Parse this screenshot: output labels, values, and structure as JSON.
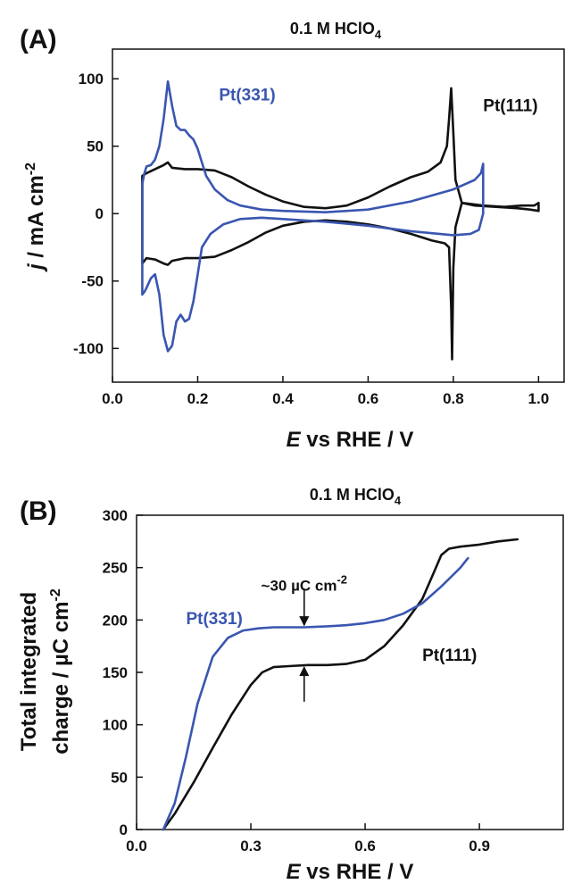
{
  "panels": {
    "a": {
      "label": "(A)"
    },
    "b": {
      "label": "(B)"
    }
  },
  "chart_data": [
    {
      "type": "line",
      "title": "0.1 M HClO4",
      "title_main": "0.1 M HClO",
      "title_sub": "4",
      "xlabel": "E vs RHE / V",
      "xlabel_italic": "E",
      "xlabel_rest": " vs RHE / V",
      "ylabel": "j / mA cm-2",
      "ylabel_italic": "j",
      "ylabel_rest": " / mA cm",
      "ylabel_sup": "-2",
      "xlim": [
        0.0,
        1.06
      ],
      "ylim": [
        -125,
        122
      ],
      "xticks": [
        "0.0",
        "0.2",
        "0.4",
        "0.6",
        "0.8",
        "1.0"
      ],
      "yticks": [
        "100",
        "50",
        "0",
        "-50",
        "-100"
      ],
      "grid": false,
      "series": [
        {
          "name": "Pt(111)",
          "color": "#111111",
          "x": [
            0.07,
            0.07,
            0.08,
            0.1,
            0.12,
            0.13,
            0.14,
            0.17,
            0.2,
            0.24,
            0.28,
            0.32,
            0.36,
            0.4,
            0.45,
            0.5,
            0.55,
            0.6,
            0.65,
            0.7,
            0.74,
            0.77,
            0.785,
            0.79,
            0.795,
            0.8,
            0.805,
            0.82,
            0.87,
            0.92,
            0.96,
            0.99,
            1.0,
            1.0,
            0.98,
            0.95,
            0.9,
            0.85,
            0.82,
            0.805,
            0.8,
            0.797,
            0.795,
            0.79,
            0.78,
            0.75,
            0.7,
            0.65,
            0.6,
            0.55,
            0.5,
            0.45,
            0.4,
            0.36,
            0.32,
            0.28,
            0.24,
            0.2,
            0.17,
            0.14,
            0.13,
            0.12,
            0.1,
            0.08,
            0.07
          ],
          "y": [
            -37,
            28,
            30,
            33,
            36,
            38,
            34,
            33,
            33,
            32,
            27,
            20,
            14,
            9,
            5,
            4,
            6,
            12,
            20,
            27,
            31,
            38,
            50,
            70,
            93,
            60,
            25,
            8,
            6,
            5,
            6,
            6,
            8,
            2,
            3,
            4,
            5,
            6,
            8,
            -10,
            -40,
            -108,
            -70,
            -25,
            -22,
            -20,
            -15,
            -11,
            -8,
            -6,
            -5,
            -6,
            -9,
            -14,
            -21,
            -27,
            -32,
            -33,
            -33,
            -35,
            -38,
            -37,
            -34,
            -33,
            -37
          ]
        },
        {
          "name": "Pt(331)",
          "color": "#3a56b0",
          "x": [
            0.07,
            0.07,
            0.075,
            0.08,
            0.09,
            0.1,
            0.11,
            0.12,
            0.13,
            0.14,
            0.15,
            0.16,
            0.17,
            0.18,
            0.19,
            0.2,
            0.21,
            0.22,
            0.24,
            0.27,
            0.3,
            0.35,
            0.4,
            0.5,
            0.6,
            0.7,
            0.8,
            0.85,
            0.865,
            0.87,
            0.87,
            0.86,
            0.84,
            0.8,
            0.7,
            0.6,
            0.5,
            0.4,
            0.35,
            0.3,
            0.26,
            0.23,
            0.21,
            0.2,
            0.19,
            0.18,
            0.17,
            0.16,
            0.15,
            0.14,
            0.13,
            0.12,
            0.11,
            0.1,
            0.09,
            0.08,
            0.075,
            0.07
          ],
          "y": [
            -60,
            22,
            30,
            35,
            36,
            40,
            50,
            70,
            98,
            80,
            65,
            62,
            62,
            58,
            55,
            48,
            38,
            28,
            18,
            10,
            6,
            3,
            2,
            1,
            3,
            9,
            18,
            25,
            30,
            37,
            0,
            -12,
            -15,
            -16,
            -13,
            -9,
            -6,
            -4,
            -3,
            -4,
            -8,
            -15,
            -25,
            -45,
            -65,
            -78,
            -80,
            -75,
            -80,
            -98,
            -102,
            -90,
            -60,
            -45,
            -48,
            -55,
            -58,
            -60
          ]
        }
      ],
      "annotations": [
        {
          "text": "Pt(331)",
          "x": 0.25,
          "y": 84,
          "color": "#3a56b0"
        },
        {
          "text": "Pt(111)",
          "x": 0.87,
          "y": 76,
          "color": "#111111"
        }
      ]
    },
    {
      "type": "line",
      "title": "0.1 M HClO4",
      "title_main": "0.1 M HClO",
      "title_sub": "4",
      "xlabel": "E vs RHE / V",
      "xlabel_italic": "E",
      "xlabel_rest": " vs RHE / V",
      "ylabel_line1": "Total integrated",
      "ylabel_line2_main": "charge / µC cm",
      "ylabel_line2_sup": "-2",
      "xlim": [
        0.0,
        1.12
      ],
      "ylim": [
        0,
        300
      ],
      "xticks": [
        "0.0",
        "0.3",
        "0.6",
        "0.9"
      ],
      "yticks": [
        "300",
        "250",
        "200",
        "150",
        "100",
        "50",
        "0"
      ],
      "grid": false,
      "series": [
        {
          "name": "Pt(111)",
          "color": "#111111",
          "x": [
            0.07,
            0.1,
            0.15,
            0.2,
            0.25,
            0.3,
            0.33,
            0.36,
            0.4,
            0.45,
            0.5,
            0.55,
            0.6,
            0.65,
            0.7,
            0.75,
            0.78,
            0.8,
            0.82,
            0.85,
            0.9,
            0.95,
            1.0
          ],
          "y": [
            0,
            15,
            45,
            78,
            110,
            138,
            150,
            155,
            156,
            157,
            157,
            158,
            162,
            175,
            195,
            220,
            245,
            262,
            268,
            270,
            272,
            275,
            277
          ]
        },
        {
          "name": "Pt(331)",
          "color": "#3a56b0",
          "x": [
            0.07,
            0.1,
            0.13,
            0.16,
            0.2,
            0.24,
            0.28,
            0.32,
            0.36,
            0.44,
            0.5,
            0.55,
            0.6,
            0.65,
            0.7,
            0.75,
            0.8,
            0.85,
            0.87
          ],
          "y": [
            0,
            25,
            70,
            120,
            165,
            183,
            190,
            192,
            193,
            193,
            194,
            195,
            197,
            200,
            206,
            216,
            232,
            250,
            259
          ]
        }
      ],
      "annotations": [
        {
          "text": "Pt(331)",
          "x": 0.13,
          "y": 196,
          "color": "#3a56b0"
        },
        {
          "text": "Pt(111)",
          "x": 0.75,
          "y": 161,
          "color": "#111111"
        },
        {
          "text_main": "~30 µC cm",
          "text_sup": "-2",
          "x": 0.44,
          "y": 228
        }
      ],
      "arrows": [
        {
          "x": 0.44,
          "y_from": 230,
          "y_to": 195
        },
        {
          "x": 0.44,
          "y_from": 122,
          "y_to": 155
        }
      ]
    }
  ]
}
